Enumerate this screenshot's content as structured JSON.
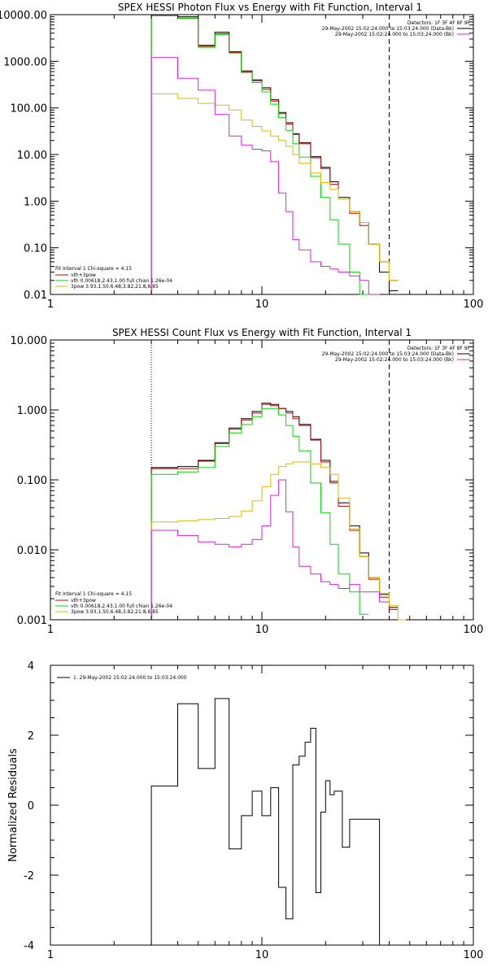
{
  "chart_data": [
    {
      "type": "line",
      "title": "SPEX HESSI Photon Flux vs Energy with Fit Function, Interval 1",
      "xlabel": "",
      "ylabel": "",
      "xscale": "log",
      "yscale": "log",
      "xlim": [
        1,
        100
      ],
      "ylim": [
        0.01,
        10000
      ],
      "x_ticks": [
        "1",
        "10",
        "100"
      ],
      "y_ticks": [
        "0.01",
        "0.10",
        "1.00",
        "10.00",
        "100.00",
        "1000.00",
        "10000.00"
      ],
      "legend_top": [
        "Detectors: 1F 3F 4F 8F 9F",
        "29-May-2002 15:02:24.000 to 15:03:24.000 (Data-Bk)",
        "29-May-2002 15:02:24.000 to 15:03:24.000 (Bk)"
      ],
      "legend_bottom": [
        "Fit Interval 1    Chi-square = 4.15",
        "vth+3pow",
        "vth 0.00618,2.43,1.00  full chian 1.26e-04",
        "3pow 3.93,1.50,6.48,3.82,21.8,6.85"
      ],
      "energy_edges": [
        3,
        4,
        5,
        6,
        7,
        8,
        9,
        10,
        11,
        12,
        13,
        14,
        15,
        17,
        19,
        21,
        23,
        26,
        29,
        32,
        36,
        40,
        44
      ],
      "series": [
        {
          "name": "Data-Bk",
          "color": "#000000",
          "values": [
            9500,
            9000,
            2200,
            4200,
            1600,
            620,
            400,
            270,
            150,
            80,
            48,
            28,
            18,
            9,
            5.3,
            2.6,
            1.2,
            0.6,
            0.35,
            0.12,
            0.03,
            0.012,
            null
          ]
        },
        {
          "name": "vth+3pow",
          "color": "#cc0000",
          "values": [
            9400,
            8400,
            2100,
            3900,
            1550,
            600,
            380,
            250,
            140,
            75,
            45,
            27,
            17,
            8.5,
            5,
            2.3,
            1.1,
            0.55,
            0.3,
            0.12,
            0.05,
            0.02,
            null
          ]
        },
        {
          "name": "vth",
          "color": "#00dd00",
          "values": [
            9400,
            8300,
            2000,
            3700,
            1500,
            570,
            350,
            220,
            120,
            62,
            33,
            17,
            8.8,
            3.4,
            1.2,
            0.4,
            0.12,
            0.03,
            0.008,
            null,
            null,
            null,
            null
          ]
        },
        {
          "name": "3pow",
          "color": "#ddbb00",
          "values": [
            200,
            160,
            125,
            115,
            90,
            55,
            40,
            32,
            25,
            20,
            15,
            10,
            6.5,
            4,
            2.5,
            1.8,
            1.1,
            0.6,
            0.35,
            0.12,
            0.05,
            0.02,
            null
          ]
        },
        {
          "name": "Bk",
          "color": "#dd22dd",
          "values": [
            1200,
            430,
            240,
            72,
            25,
            16,
            13,
            12,
            7,
            1.5,
            0.6,
            0.15,
            0.09,
            0.05,
            0.04,
            0.035,
            0.03,
            0.025,
            0.02,
            0.01,
            null,
            null,
            null
          ]
        }
      ],
      "vlines": [
        {
          "x": 3,
          "style": "dotted"
        },
        {
          "x": 40,
          "style": "dashed"
        }
      ]
    },
    {
      "type": "line",
      "title": "SPEX HESSI Count Flux vs Energy with Fit Function, Interval 1",
      "xlabel": "",
      "ylabel": "",
      "xscale": "log",
      "yscale": "log",
      "xlim": [
        1,
        100
      ],
      "ylim": [
        0.001,
        10
      ],
      "x_ticks": [
        "1",
        "10",
        "100"
      ],
      "y_ticks": [
        "0.001",
        "0.010",
        "0.100",
        "1.000",
        "10.000"
      ],
      "legend_top": [
        "Detectors: 1F 3F 4F 8F 9F",
        "29-May-2002 15:02:24.000 to 15:03:24.000 (Data-Bk)",
        "29-May-2002 15:02:24.000 to 15:03:24.000 (Bk)"
      ],
      "legend_bottom": [
        "Fit Interval 1    Chi-square = 4.15",
        "vth+3pow",
        "vth 0.00618,2.43,1.00  full chian 1.26e-04",
        "3pow 3.93,1.50,6.48,3.82,21.8,6.85"
      ],
      "energy_edges": [
        3,
        4,
        5,
        6,
        7,
        8,
        9,
        10,
        11,
        12,
        13,
        14,
        15,
        17,
        19,
        21,
        23,
        26,
        29,
        32,
        36,
        40,
        44,
        48
      ],
      "series": [
        {
          "name": "Data-Bk",
          "color": "#000000",
          "values": [
            0.15,
            0.155,
            0.19,
            0.34,
            0.55,
            0.75,
            0.95,
            1.25,
            1.2,
            1.05,
            0.95,
            0.8,
            0.62,
            0.38,
            0.19,
            0.095,
            0.047,
            0.022,
            0.009,
            0.004,
            0.0023,
            0.0015,
            null
          ]
        },
        {
          "name": "vth+3pow",
          "color": "#cc0000",
          "values": [
            0.145,
            0.145,
            0.185,
            0.33,
            0.53,
            0.72,
            0.9,
            1.2,
            1.15,
            1.05,
            0.9,
            0.75,
            0.6,
            0.37,
            0.18,
            0.09,
            0.042,
            0.019,
            0.008,
            0.0038,
            0.0021,
            0.0014,
            null
          ]
        },
        {
          "name": "vth",
          "color": "#00dd00",
          "values": [
            0.12,
            0.13,
            0.15,
            0.3,
            0.47,
            0.62,
            0.8,
            1.05,
            1.05,
            0.85,
            0.6,
            0.42,
            0.26,
            0.09,
            0.034,
            0.012,
            0.0045,
            0.0025,
            0.0012,
            null,
            null,
            null,
            null
          ]
        },
        {
          "name": "3pow",
          "color": "#ddbb00",
          "values": [
            0.025,
            0.026,
            0.027,
            0.028,
            0.03,
            0.036,
            0.05,
            0.08,
            0.12,
            0.155,
            0.17,
            0.18,
            0.18,
            0.17,
            0.15,
            0.12,
            0.055,
            0.02,
            0.008,
            0.004,
            0.0024,
            0.0016,
            0.001
          ]
        },
        {
          "name": "Bk",
          "color": "#dd22dd",
          "values": [
            0.019,
            0.016,
            0.013,
            0.012,
            0.011,
            0.012,
            0.014,
            0.022,
            0.06,
            0.1,
            0.035,
            0.011,
            0.0058,
            0.0045,
            0.0035,
            0.0032,
            0.0028,
            0.0032,
            0.0025,
            0.0025,
            0.0018,
            null,
            null
          ]
        }
      ],
      "vlines": [
        {
          "x": 3,
          "style": "dotted"
        },
        {
          "x": 40,
          "style": "dashed"
        }
      ]
    },
    {
      "type": "line",
      "title": "",
      "xlabel": "",
      "ylabel": "Normalized Residuals",
      "xscale": "log",
      "yscale": "linear",
      "xlim": [
        1,
        100
      ],
      "ylim": [
        -4,
        4
      ],
      "x_ticks": [
        "1",
        "10",
        "100"
      ],
      "y_ticks": [
        "4",
        "2",
        "0",
        "-2",
        "-4"
      ],
      "legend": "1. 29-May-2002 15:02:24.000 to 15:03:24.000",
      "energy_edges": [
        3,
        4,
        5,
        6,
        7,
        8,
        9,
        10,
        11,
        12,
        13,
        14,
        15,
        16,
        17,
        18,
        19,
        20,
        21,
        22,
        24,
        26,
        28,
        30,
        32,
        36,
        40
      ],
      "series": [
        {
          "name": "1. 29-May-2002 15:02:24.000 to 15:03:24.000",
          "color": "#000000",
          "values": [
            0.55,
            2.9,
            1.05,
            3.05,
            -1.25,
            -0.3,
            0.4,
            -0.3,
            0.5,
            -2.35,
            -3.25,
            1.15,
            1.4,
            1.8,
            2.2,
            -2.5,
            -0.2,
            0.7,
            0.3,
            0.4,
            -1.2,
            -0.4,
            -0.4,
            -0.4,
            -0.4,
            -4
          ]
        }
      ],
      "baseline": -4
    }
  ]
}
